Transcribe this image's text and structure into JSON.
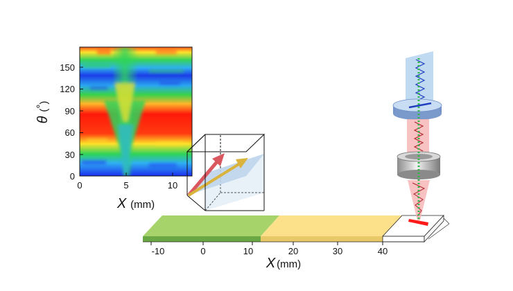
{
  "heatmap": {
    "y_symbol": "θ",
    "y_unit_open": "(",
    "y_unit_deg": "°",
    "y_unit_close": ")",
    "y_ticks": [
      "0",
      "30",
      "60",
      "90",
      "120",
      "150"
    ],
    "x_symbol": "X",
    "x_unit": "(mm)",
    "x_ticks": [
      "0",
      "5",
      "10"
    ]
  },
  "strip": {
    "x_symbol": "X",
    "x_unit": "(mm)",
    "x_ticks": [
      "-10",
      "0",
      "10",
      "20",
      "30",
      "40"
    ]
  },
  "colors": {
    "green_region": "#a6d46a",
    "yellow_region": "#fde08a",
    "white_region": "#ffffff",
    "arrow_red": "#d9585f",
    "arrow_gold": "#d9b33c",
    "focus_spot": "#ff1a1a",
    "beam_pink": "#f7b7b7",
    "beam_blue": "#a9cdec"
  }
}
